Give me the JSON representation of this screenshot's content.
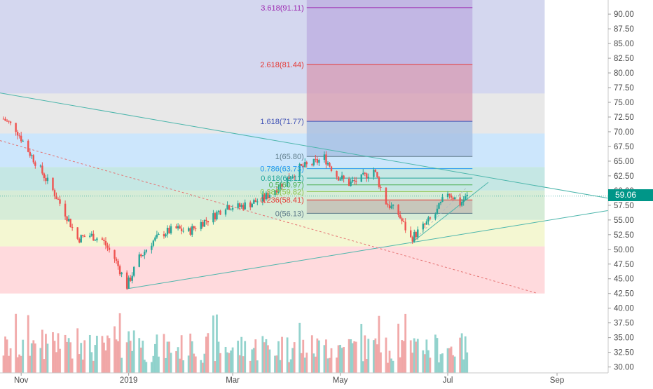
{
  "chart_data": {
    "type": "candlestick",
    "symbol_price_label": "59.06",
    "y_axis": {
      "ticks": [
        "90.00",
        "87.50",
        "85.00",
        "82.50",
        "80.00",
        "77.50",
        "75.00",
        "72.50",
        "70.00",
        "67.50",
        "65.00",
        "62.50",
        "60.00",
        "57.50",
        "55.00",
        "52.50",
        "50.00",
        "47.50",
        "45.00",
        "42.50",
        "40.00",
        "37.50",
        "35.00",
        "32.50",
        "30.00"
      ],
      "range": [
        29,
        92.4
      ]
    },
    "x_axis": {
      "labels": [
        "Nov",
        "2019",
        "Mar",
        "May",
        "Jul",
        "Sep"
      ],
      "label_dates": [
        "2018-11-01",
        "2019-01-01",
        "2019-03-01",
        "2019-05-01",
        "2019-07-01",
        "2019-09-01"
      ],
      "range": [
        "2018-10-20",
        "2019-09-30"
      ]
    },
    "fib_levels": [
      {
        "label": "3.618(91.11)",
        "value": 91.11,
        "color": "#9c27b0"
      },
      {
        "label": "2.618(81.44)",
        "value": 81.44,
        "color": "#e53935"
      },
      {
        "label": "1.618(71.77)",
        "value": 71.77,
        "color": "#3f51b5"
      },
      {
        "label": "1(65.80)",
        "value": 65.8,
        "color": "#607d8b"
      },
      {
        "label": "0.786(63.73)",
        "value": 63.73,
        "color": "#2196f3"
      },
      {
        "label": "0.618(62.11)",
        "value": 62.11,
        "color": "#26a69a"
      },
      {
        "label": "0.5(60.97)",
        "value": 60.97,
        "color": "#4caf50"
      },
      {
        "label": "0.382(59.82)",
        "value": 59.82,
        "color": "#8bc34a"
      },
      {
        "label": "0.236(58.41)",
        "value": 58.41,
        "color": "#e53935"
      },
      {
        "label": "0(56.13)",
        "value": 56.13,
        "color": "#607d8b"
      }
    ],
    "retracement_bands": [
      {
        "from": 92.4,
        "to": 76.5,
        "color": "#c5cae9"
      },
      {
        "from": 76.5,
        "to": 69.7,
        "color": "#e0e0e0"
      },
      {
        "from": 69.7,
        "to": 64.0,
        "color": "#bbdefb"
      },
      {
        "from": 64.0,
        "to": 60.0,
        "color": "#b2dfdb"
      },
      {
        "from": 60.0,
        "to": 55.0,
        "color": "#c8e6c9"
      },
      {
        "from": 55.0,
        "to": 50.5,
        "color": "#f0f4c3"
      },
      {
        "from": 50.5,
        "to": 42.5,
        "color": "#ffcdd2"
      }
    ],
    "trendlines": [
      {
        "from": [
          "2018-10-20",
          76.6
        ],
        "to": [
          "2019-09-30",
          58.7
        ],
        "color": "#4db6ac",
        "style": "solid"
      },
      {
        "from": [
          "2018-12-31",
          43.3
        ],
        "to": [
          "2019-09-30",
          56.6
        ],
        "color": "#4db6ac",
        "style": "solid"
      },
      {
        "from": [
          "2019-06-10",
          51.0
        ],
        "to": [
          "2019-07-24",
          61.4
        ],
        "color": "#4db6ac",
        "style": "solid"
      },
      {
        "from": [
          "2019-06-10",
          51.0
        ],
        "to": [
          "2019-07-12",
          60.6
        ],
        "color": "#b0bec5",
        "style": "dashed"
      },
      {
        "from": [
          "2018-10-20",
          68.5
        ],
        "to": [
          "2019-08-20",
          42.6
        ],
        "color": "#e57373",
        "style": "dashed"
      }
    ],
    "price_path": [
      [
        "2018-10-22",
        72.2
      ],
      [
        "2018-10-29",
        70.5
      ],
      [
        "2018-11-05",
        66.8
      ],
      [
        "2018-11-12",
        63.5
      ],
      [
        "2018-11-19",
        60.0
      ],
      [
        "2018-11-26",
        56.2
      ],
      [
        "2018-12-03",
        51.8
      ],
      [
        "2018-12-10",
        52.4
      ],
      [
        "2018-12-17",
        51.6
      ],
      [
        "2018-12-24",
        48.5
      ],
      [
        "2018-12-31",
        43.8
      ],
      [
        "2019-01-07",
        48.5
      ],
      [
        "2019-01-14",
        51.2
      ],
      [
        "2019-01-21",
        52.8
      ],
      [
        "2019-01-28",
        53.5
      ],
      [
        "2019-02-04",
        53.0
      ],
      [
        "2019-02-11",
        54.5
      ],
      [
        "2019-02-18",
        55.6
      ],
      [
        "2019-02-25",
        57.5
      ],
      [
        "2019-03-04",
        57.2
      ],
      [
        "2019-03-11",
        57.8
      ],
      [
        "2019-03-18",
        58.6
      ],
      [
        "2019-03-25",
        60.2
      ],
      [
        "2019-04-01",
        62.0
      ],
      [
        "2019-04-08",
        63.8
      ],
      [
        "2019-04-15",
        64.5
      ],
      [
        "2019-04-22",
        65.6
      ],
      [
        "2019-04-29",
        62.6
      ],
      [
        "2019-05-06",
        61.2
      ],
      [
        "2019-05-13",
        62.0
      ],
      [
        "2019-05-20",
        63.6
      ],
      [
        "2019-05-27",
        58.0
      ],
      [
        "2019-06-03",
        56.0
      ],
      [
        "2019-06-10",
        51.8
      ],
      [
        "2019-06-17",
        53.8
      ],
      [
        "2019-06-24",
        56.0
      ],
      [
        "2019-07-01",
        59.8
      ],
      [
        "2019-07-08",
        57.8
      ],
      [
        "2019-07-12",
        59.0
      ]
    ],
    "volume": {
      "note": "volume bars drawn along bottom pane, colored teal for up days and red for down days"
    }
  }
}
